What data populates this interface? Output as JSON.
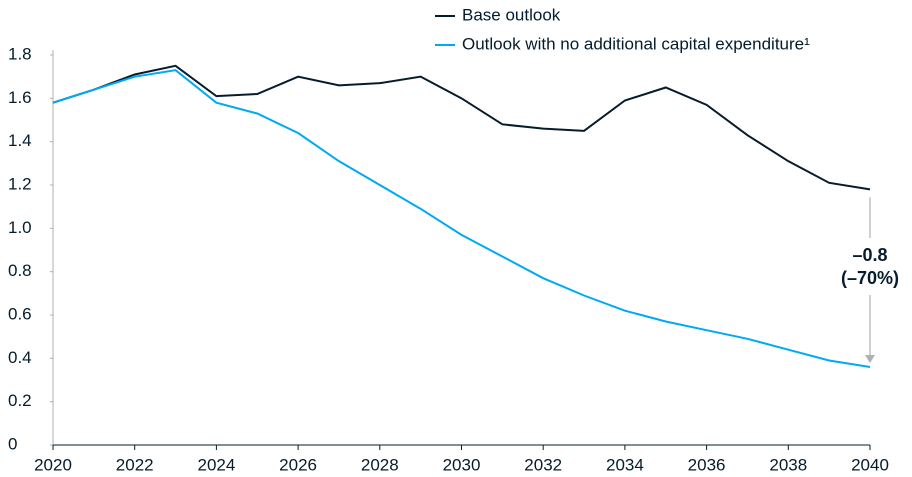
{
  "chart_data": {
    "type": "line",
    "x": [
      2020,
      2021,
      2022,
      2023,
      2024,
      2025,
      2026,
      2027,
      2028,
      2029,
      2030,
      2031,
      2032,
      2033,
      2034,
      2035,
      2036,
      2037,
      2038,
      2039,
      2040
    ],
    "series": [
      {
        "name": "Base outlook",
        "color": "#051c2c",
        "values": [
          1.58,
          1.64,
          1.71,
          1.75,
          1.61,
          1.62,
          1.7,
          1.66,
          1.67,
          1.7,
          1.6,
          1.48,
          1.46,
          1.45,
          1.59,
          1.65,
          1.57,
          1.43,
          1.31,
          1.21,
          1.18
        ]
      },
      {
        "name": "Outlook with no additional capital expenditure¹",
        "color": "#00a9f4",
        "values": [
          1.58,
          1.64,
          1.7,
          1.73,
          1.58,
          1.53,
          1.44,
          1.31,
          1.2,
          1.09,
          0.97,
          0.87,
          0.77,
          0.69,
          0.62,
          0.57,
          0.53,
          0.49,
          0.44,
          0.39,
          0.36
        ]
      }
    ],
    "xlim": [
      2020,
      2040
    ],
    "xticks": [
      2020,
      2022,
      2024,
      2026,
      2028,
      2030,
      2032,
      2034,
      2036,
      2038,
      2040
    ],
    "ylim": [
      0,
      1.8
    ],
    "yticks": [
      0,
      0.2,
      0.4,
      0.6,
      0.8,
      {
        "value": 1,
        "label": "1.0"
      },
      1.2,
      1.4,
      1.6,
      1.8
    ],
    "annotations": [
      "–0.8",
      "(–70%)"
    ],
    "grid": false
  }
}
